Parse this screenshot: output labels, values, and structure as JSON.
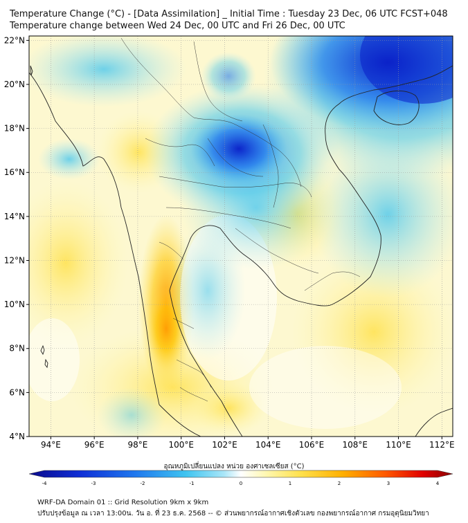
{
  "title": {
    "line1": "Temperature Change (°C) - [Data Assimilation] _ Initial Time : Tuesday 23 Dec, 06 UTC FCST+048",
    "line2": "Temperature change between Wed 24 Dec, 00 UTC and Fri 26 Dec, 00 UTC"
  },
  "map": {
    "lat_ticks": [
      "22°N",
      "20°N",
      "18°N",
      "16°N",
      "14°N",
      "12°N",
      "10°N",
      "8°N",
      "6°N",
      "4°N"
    ],
    "lon_ticks": [
      "94°E",
      "96°E",
      "98°E",
      "100°E",
      "102°E",
      "104°E",
      "106°E",
      "108°E",
      "110°E",
      "112°E"
    ],
    "lat_range": [
      4,
      22.2
    ],
    "lon_range": [
      93,
      112.5
    ],
    "grid": true
  },
  "colorbar": {
    "title": "อุณหภูมิเปลี่ยนแปลง หน่วย องศาเซลเซียส (°C)",
    "tick_labels": [
      "-4",
      "-3",
      "-2",
      "-1",
      "0",
      "1",
      "2",
      "3",
      "4"
    ],
    "range": [
      -4,
      4
    ],
    "colors": [
      "#0a0a8c",
      "#0f2fd6",
      "#1f78ee",
      "#3fc4f0",
      "#a9e6f8",
      "#ffffff",
      "#fff7b0",
      "#ffe14d",
      "#ffb000",
      "#ff5a00",
      "#e00000",
      "#8a0000"
    ]
  },
  "footer": {
    "line1": "WRF-DA Domain 01 :: Grid Resolution 9km x 9km",
    "line2": "ปรับปรุงข้อมูล ณ เวลา 13:00น. วัน อ. ที่ 23 ธ.ค. 2568 -- © ส่วนพยากรณ์อากาศเชิงตัวเลข กองพยากรณ์อากาศ กรมอุตุนิยมวิทยา"
  }
}
